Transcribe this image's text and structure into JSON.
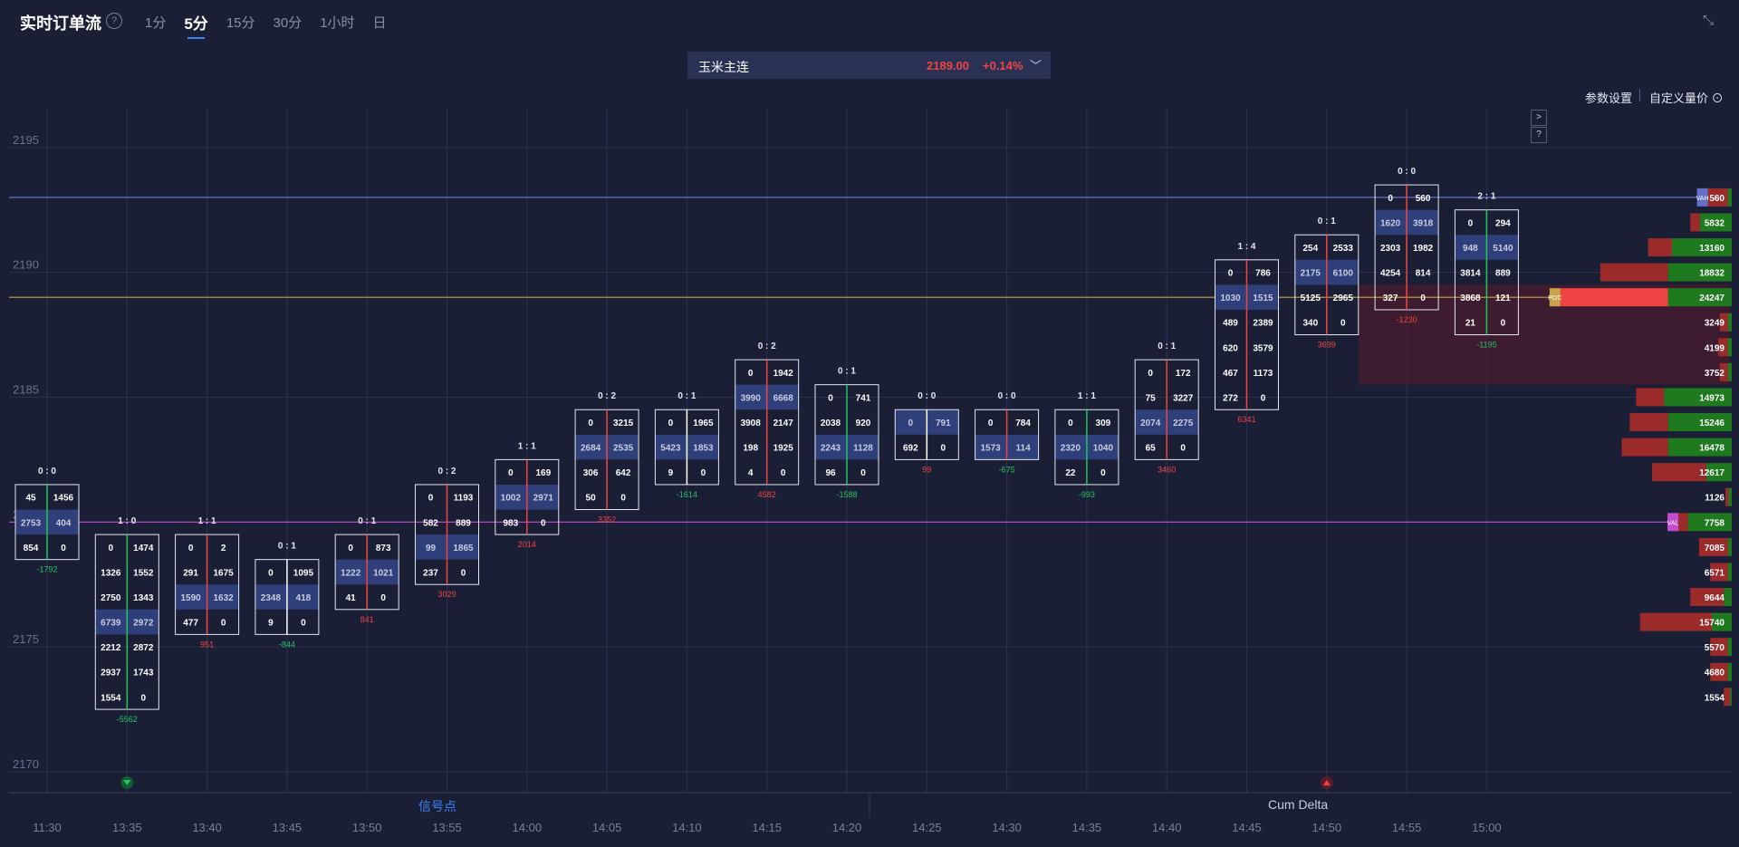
{
  "header": {
    "title": "实时订单流",
    "help": "?",
    "tabs": [
      {
        "label": "1分",
        "active": false
      },
      {
        "label": "5分",
        "active": true
      },
      {
        "label": "15分",
        "active": false
      },
      {
        "label": "30分",
        "active": false
      },
      {
        "label": "1小时",
        "active": false
      },
      {
        "label": "日",
        "active": false
      }
    ],
    "collapse_icon": "⤡"
  },
  "symbol": {
    "name": "玉米主连",
    "price": "2189.00",
    "change": "+0.14%",
    "chevron": "﹀"
  },
  "toolbar": {
    "params_label": "参数设置",
    "custom_label": "自定义量价",
    "next": ">",
    "help": "?"
  },
  "footer": {
    "left": "信号点",
    "right": "Cum Delta"
  },
  "colors": {
    "bg": "#1b1f35",
    "up": "#ef4444",
    "down": "#22c55e",
    "hl": "#2f3f7a",
    "vah": "#6370c7",
    "poc": "#c9a24a",
    "val": "#c24bd0"
  },
  "chart_data": {
    "type": "footprint",
    "ylim": [
      2169,
      2197
    ],
    "y_ticks": [
      2170,
      2175,
      2180,
      2185,
      2190,
      2195
    ],
    "y_tick_labels": [
      "2170",
      "2175",
      "2180",
      "2185",
      "2190",
      "2195"
    ],
    "vah": 2193,
    "poc": 2189,
    "val": 2180,
    "x_labels": [
      "11:30",
      "13:35",
      "13:40",
      "13:45",
      "13:50",
      "13:55",
      "14:00",
      "14:05",
      "14:10",
      "14:15",
      "14:20",
      "14:25",
      "14:30",
      "14:35",
      "14:40",
      "14:45",
      "14:50",
      "14:55",
      "15:00"
    ],
    "bars": [
      {
        "header": "0 : 0",
        "top": 2181,
        "rows": [
          [
            "45",
            "1456"
          ],
          [
            "2753",
            "404"
          ],
          [
            "854",
            "0"
          ]
        ],
        "hl": [
          1
        ],
        "delta": "-1792",
        "line": "green",
        "dc": "green"
      },
      {
        "header": "1 : 0",
        "top": 2179,
        "rows": [
          [
            "0",
            "1474"
          ],
          [
            "1326",
            "1552"
          ],
          [
            "2750",
            "1343"
          ],
          [
            "6739",
            "2972"
          ],
          [
            "2212",
            "2872"
          ],
          [
            "2937",
            "1743"
          ],
          [
            "1554",
            "0"
          ]
        ],
        "hl": [
          3
        ],
        "delta": "-5562",
        "line": "green",
        "dc": "green"
      },
      {
        "header": "1 : 1",
        "top": 2179,
        "rows": [
          [
            "0",
            "2"
          ],
          [
            "291",
            "1675"
          ],
          [
            "1590",
            "1632"
          ],
          [
            "477",
            "0"
          ]
        ],
        "hl": [
          2
        ],
        "delta": "951",
        "line": "red",
        "dc": "red"
      },
      {
        "header": "0 : 1",
        "top": 2178,
        "rows": [
          [
            "0",
            "1095"
          ],
          [
            "2348",
            "418"
          ],
          [
            "9",
            "0"
          ]
        ],
        "hl": [
          1
        ],
        "delta": "-844",
        "line": "white",
        "dc": "green"
      },
      {
        "header": "0 : 1",
        "top": 2179,
        "rows": [
          [
            "0",
            "873"
          ],
          [
            "1222",
            "1021"
          ],
          [
            "41",
            "0"
          ]
        ],
        "hl": [
          1
        ],
        "delta": "841",
        "line": "red",
        "dc": "red"
      },
      {
        "header": "0 : 2",
        "top": 2181,
        "rows": [
          [
            "0",
            "1193"
          ],
          [
            "582",
            "889"
          ],
          [
            "99",
            "1865"
          ],
          [
            "237",
            "0"
          ]
        ],
        "hl": [
          2
        ],
        "delta": "3029",
        "line": "red",
        "dc": "red"
      },
      {
        "header": "1 : 1",
        "top": 2182,
        "rows": [
          [
            "0",
            "169"
          ],
          [
            "1002",
            "2971"
          ],
          [
            "983",
            "0"
          ]
        ],
        "hl": [
          1
        ],
        "delta": "2014",
        "line": "red",
        "dc": "red"
      },
      {
        "header": "0 : 2",
        "top": 2184,
        "rows": [
          [
            "0",
            "3215"
          ],
          [
            "2684",
            "2535"
          ],
          [
            "306",
            "642"
          ],
          [
            "50",
            "0"
          ]
        ],
        "hl": [
          1
        ],
        "delta": "3352",
        "line": "red",
        "dc": "red"
      },
      {
        "header": "0 : 1",
        "top": 2184,
        "rows": [
          [
            "0",
            "1965"
          ],
          [
            "5423",
            "1853"
          ],
          [
            "9",
            "0"
          ]
        ],
        "hl": [
          1
        ],
        "delta": "-1614",
        "line": "white",
        "dc": "green"
      },
      {
        "header": "0 : 2",
        "top": 2186,
        "rows": [
          [
            "0",
            "1942"
          ],
          [
            "3990",
            "6668"
          ],
          [
            "3908",
            "2147"
          ],
          [
            "198",
            "1925"
          ],
          [
            "4",
            "0"
          ]
        ],
        "hl": [
          1
        ],
        "delta": "4582",
        "line": "red",
        "dc": "red"
      },
      {
        "header": "0 : 1",
        "top": 2185,
        "rows": [
          [
            "0",
            "741"
          ],
          [
            "2038",
            "920"
          ],
          [
            "2243",
            "1128"
          ],
          [
            "96",
            "0"
          ]
        ],
        "hl": [
          2
        ],
        "delta": "-1588",
        "line": "green",
        "dc": "green"
      },
      {
        "header": "0 : 0",
        "top": 2184,
        "rows": [
          [
            "0",
            "791"
          ],
          [
            "692",
            "0"
          ]
        ],
        "hl": [
          0
        ],
        "delta": "99",
        "line": "white",
        "dc": "red"
      },
      {
        "header": "0 : 0",
        "top": 2184,
        "rows": [
          [
            "0",
            "784"
          ],
          [
            "1573",
            "114"
          ]
        ],
        "hl": [
          1
        ],
        "delta": "-675",
        "line": "red",
        "dc": "green"
      },
      {
        "header": "1 : 1",
        "top": 2184,
        "rows": [
          [
            "0",
            "309"
          ],
          [
            "2320",
            "1040"
          ],
          [
            "22",
            "0"
          ]
        ],
        "hl": [
          1
        ],
        "delta": "-993",
        "line": "green",
        "dc": "green"
      },
      {
        "header": "0 : 1",
        "top": 2186,
        "rows": [
          [
            "0",
            "172"
          ],
          [
            "75",
            "3227"
          ],
          [
            "2074",
            "2275"
          ],
          [
            "65",
            "0"
          ]
        ],
        "hl": [
          2
        ],
        "delta": "3460",
        "line": "red",
        "dc": "red"
      },
      {
        "header": "1 : 4",
        "top": 2190,
        "rows": [
          [
            "0",
            "786"
          ],
          [
            "1030",
            "1515"
          ],
          [
            "489",
            "2389"
          ],
          [
            "620",
            "3579"
          ],
          [
            "467",
            "1173"
          ],
          [
            "272",
            "0"
          ]
        ],
        "hl": [
          1
        ],
        "delta": "6341",
        "line": "red",
        "dc": "red"
      },
      {
        "header": "0 : 1",
        "top": 2191,
        "rows": [
          [
            "254",
            "2533"
          ],
          [
            "2175",
            "6100"
          ],
          [
            "5125",
            "2965"
          ],
          [
            "340",
            "0"
          ]
        ],
        "hl": [
          1
        ],
        "delta": "3699",
        "line": "red",
        "dc": "red"
      },
      {
        "header": "0 : 0",
        "top": 2193,
        "rows": [
          [
            "0",
            "560"
          ],
          [
            "1620",
            "3918"
          ],
          [
            "2303",
            "1982"
          ],
          [
            "4254",
            "814"
          ],
          [
            "327",
            "0"
          ]
        ],
        "hl": [
          1
        ],
        "delta": "-1230",
        "line": "red",
        "dc": "red"
      },
      {
        "header": "2 : 1",
        "top": 2192,
        "rows": [
          [
            "0",
            "294"
          ],
          [
            "948",
            "5140"
          ],
          [
            "3814",
            "889"
          ],
          [
            "3868",
            "121"
          ],
          [
            "21",
            "0"
          ]
        ],
        "hl": [
          1
        ],
        "delta": "-1195",
        "line": "green",
        "dc": "green"
      }
    ],
    "volume_profile": [
      {
        "price": 2193,
        "total": "560",
        "sell": 25,
        "buy": 5,
        "tag": "VAH"
      },
      {
        "price": 2192,
        "total": "5832",
        "sell": 12,
        "buy": 40
      },
      {
        "price": 2191,
        "total": "13160",
        "sell": 30,
        "buy": 75
      },
      {
        "price": 2190,
        "total": "18832",
        "sell": 85,
        "buy": 80
      },
      {
        "price": 2189,
        "total": "24247",
        "sell": 135,
        "buy": 80,
        "tag": "POC"
      },
      {
        "price": 2188,
        "total": "3249",
        "sell": 10,
        "buy": 5
      },
      {
        "price": 2187,
        "total": "4199",
        "sell": 12,
        "buy": 5
      },
      {
        "price": 2186,
        "total": "3752",
        "sell": 10,
        "buy": 5
      },
      {
        "price": 2185,
        "total": "14973",
        "sell": 35,
        "buy": 85
      },
      {
        "price": 2184,
        "total": "15246",
        "sell": 48,
        "buy": 80
      },
      {
        "price": 2183,
        "total": "16478",
        "sell": 58,
        "buy": 80
      },
      {
        "price": 2182,
        "total": "12617",
        "sell": 68,
        "buy": 32
      },
      {
        "price": 2181,
        "total": "1126",
        "sell": 4,
        "buy": 4
      },
      {
        "price": 2180,
        "total": "7758",
        "sell": 12,
        "buy": 55,
        "tag": "VAL"
      },
      {
        "price": 2179,
        "total": "7085",
        "sell": 36,
        "buy": 5
      },
      {
        "price": 2178,
        "total": "6571",
        "sell": 22,
        "buy": 5
      },
      {
        "price": 2177,
        "total": "9644",
        "sell": 42,
        "buy": 10
      },
      {
        "price": 2176,
        "total": "15740",
        "sell": 90,
        "buy": 25
      },
      {
        "price": 2175,
        "total": "5570",
        "sell": 22,
        "buy": 5
      },
      {
        "price": 2174,
        "total": "4680",
        "sell": 22,
        "buy": 5
      },
      {
        "price": 2173,
        "total": "1554",
        "sell": 8,
        "buy": 2
      }
    ],
    "signals": [
      {
        "bar": 1,
        "dir": "down"
      },
      {
        "bar": 16,
        "dir": "up"
      }
    ]
  }
}
